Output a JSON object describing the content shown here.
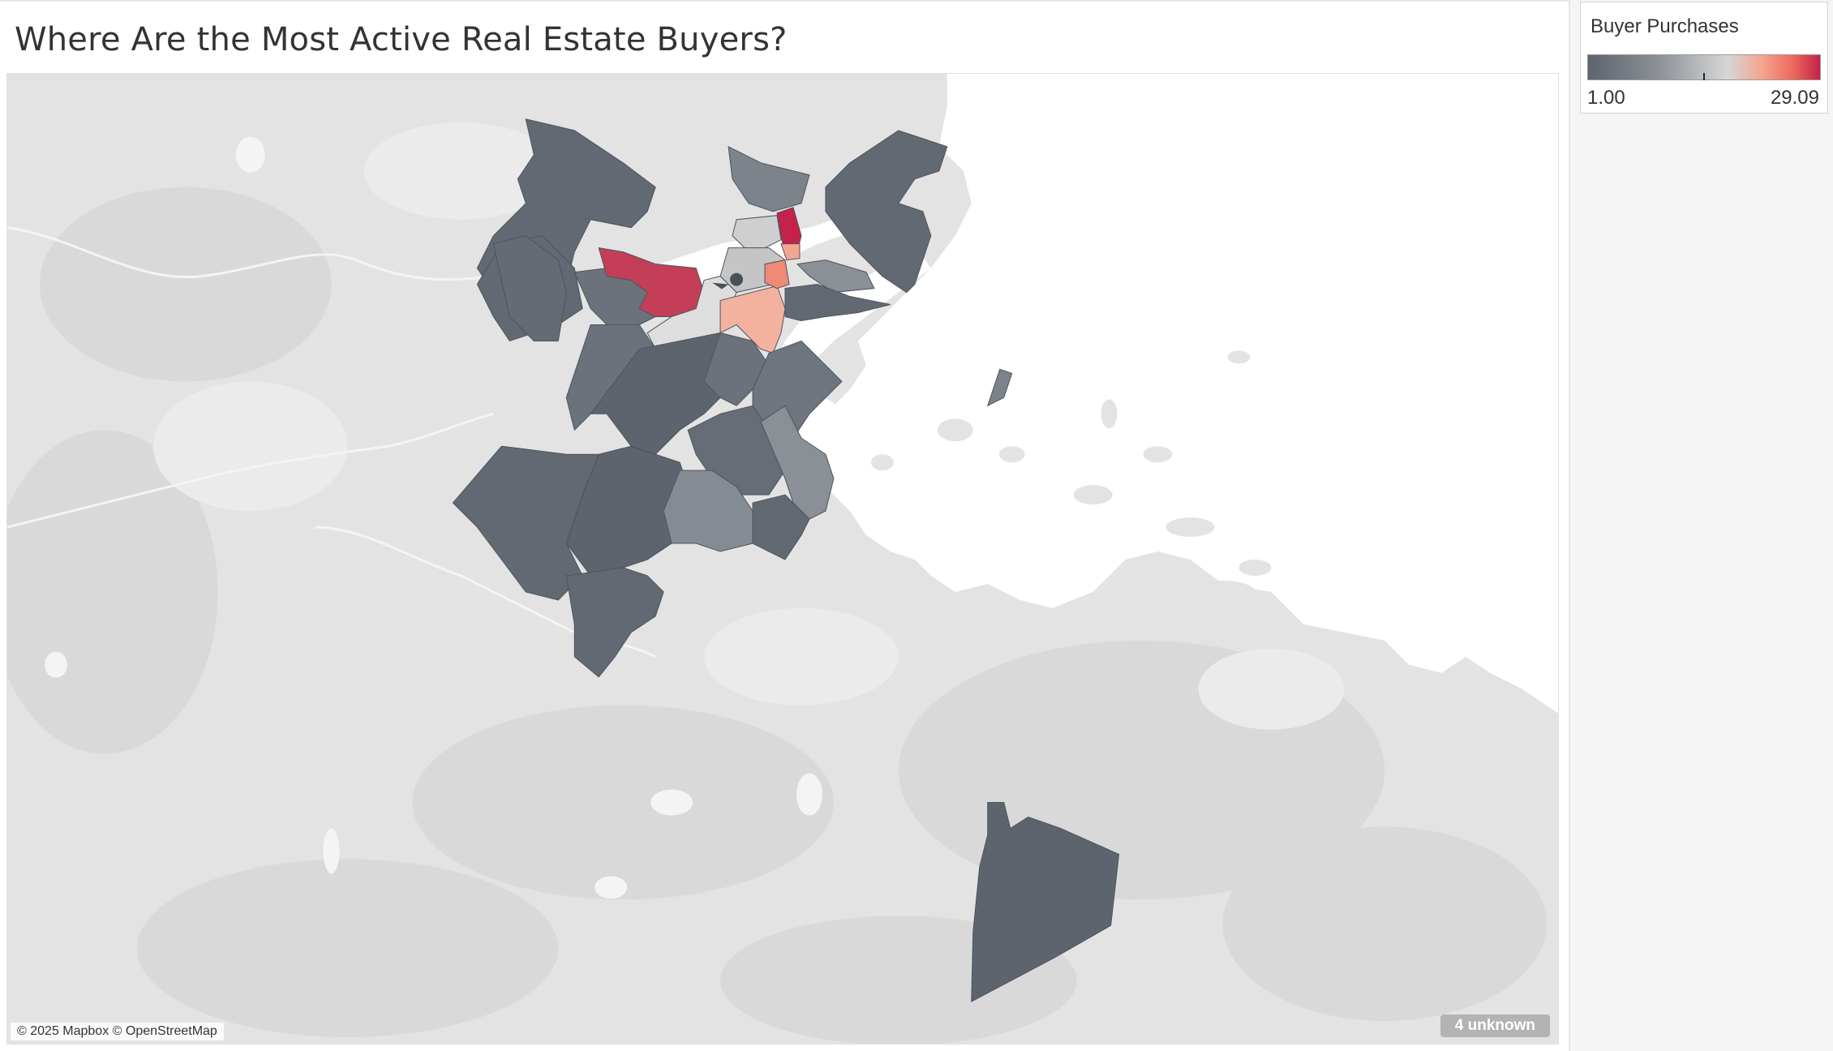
{
  "title": "Where Are the Most Active Real Estate Buyers?",
  "map": {
    "attribution": "© 2025 Mapbox © OpenStreetMap",
    "unknown_badge": "4 unknown",
    "land_color": "#e3e3e3",
    "water_color": "#ffffff"
  },
  "legend": {
    "title": "Buyer Purchases",
    "min_label": "1.00",
    "max_label": "29.09",
    "min": 1.0,
    "max": 29.09,
    "gradient_colors": [
      "#5d646e",
      "#8b9096",
      "#cfcfcf",
      "#f4a591",
      "#ee6a5e",
      "#c4224a"
    ]
  }
}
